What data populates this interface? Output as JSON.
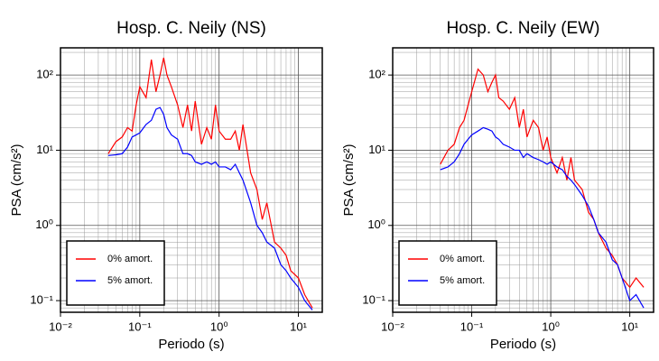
{
  "chart_data": [
    {
      "type": "line",
      "title": "Hosp. C. Neily (NS)",
      "xlabel": "Periodo (s)",
      "ylabel": "PSA (cm/s²)",
      "xscale": "log",
      "yscale": "log",
      "grid": true,
      "minor_grid": true,
      "legend": "lower left",
      "xlim": [
        0.01,
        20
      ],
      "ylim": [
        0.07,
        230
      ],
      "xticks": [
        {
          "value": 0.01,
          "label": "10⁻²"
        },
        {
          "value": 0.1,
          "label": "10⁻¹"
        },
        {
          "value": 1,
          "label": "10⁰"
        },
        {
          "value": 10,
          "label": "10¹"
        }
      ],
      "yticks": [
        {
          "value": 0.1,
          "label": "10⁻¹"
        },
        {
          "value": 1,
          "label": "10⁰"
        },
        {
          "value": 10,
          "label": "10¹"
        },
        {
          "value": 100,
          "label": "10²"
        }
      ],
      "x": [
        0.04,
        0.05,
        0.06,
        0.07,
        0.08,
        0.09,
        0.1,
        0.12,
        0.14,
        0.16,
        0.18,
        0.2,
        0.22,
        0.25,
        0.3,
        0.35,
        0.4,
        0.45,
        0.5,
        0.6,
        0.7,
        0.8,
        0.9,
        1.0,
        1.2,
        1.4,
        1.6,
        1.8,
        2.0,
        2.5,
        3,
        3.5,
        4,
        5,
        6,
        7,
        8,
        10,
        12,
        15
      ],
      "series": [
        {
          "name": "0% amort.",
          "color": "#ff0000",
          "values": [
            9,
            13,
            15,
            20,
            18,
            40,
            70,
            50,
            160,
            60,
            100,
            170,
            100,
            70,
            40,
            20,
            40,
            18,
            45,
            12,
            20,
            14,
            40,
            18,
            14,
            14,
            18,
            10,
            22,
            5,
            3,
            1.2,
            2,
            0.6,
            0.5,
            0.4,
            0.25,
            0.2,
            0.12,
            0.08
          ]
        },
        {
          "name": "5% amort.",
          "color": "#0000ff",
          "values": [
            8.5,
            8.7,
            9,
            11,
            15,
            16,
            17,
            22,
            25,
            35,
            37,
            30,
            20,
            16,
            14,
            9,
            9,
            8.5,
            7,
            6.5,
            7,
            6.5,
            7,
            6,
            6,
            5.5,
            6.5,
            5,
            4,
            2,
            1,
            0.8,
            0.6,
            0.5,
            0.3,
            0.25,
            0.2,
            0.15,
            0.1,
            0.075
          ]
        }
      ]
    },
    {
      "type": "line",
      "title": "Hosp. C. Neily (EW)",
      "xlabel": "Periodo (s)",
      "ylabel": "PSA (cm/s²)",
      "xscale": "log",
      "yscale": "log",
      "grid": true,
      "minor_grid": true,
      "legend": "lower left",
      "xlim": [
        0.01,
        20
      ],
      "ylim": [
        0.07,
        230
      ],
      "xticks": [
        {
          "value": 0.01,
          "label": "10⁻²"
        },
        {
          "value": 0.1,
          "label": "10⁻¹"
        },
        {
          "value": 1,
          "label": "10⁰"
        },
        {
          "value": 10,
          "label": "10¹"
        }
      ],
      "yticks": [
        {
          "value": 0.1,
          "label": "10⁻¹"
        },
        {
          "value": 1,
          "label": "10⁰"
        },
        {
          "value": 10,
          "label": "10¹"
        },
        {
          "value": 100,
          "label": "10²"
        }
      ],
      "x": [
        0.04,
        0.05,
        0.06,
        0.07,
        0.08,
        0.09,
        0.1,
        0.12,
        0.14,
        0.16,
        0.18,
        0.2,
        0.22,
        0.25,
        0.3,
        0.35,
        0.4,
        0.45,
        0.5,
        0.6,
        0.7,
        0.8,
        0.9,
        1.0,
        1.2,
        1.4,
        1.6,
        1.8,
        2.0,
        2.5,
        3,
        3.5,
        4,
        5,
        6,
        7,
        8,
        10,
        12,
        15
      ],
      "series": [
        {
          "name": "0% amort.",
          "color": "#ff0000",
          "values": [
            6.5,
            10,
            12,
            20,
            25,
            40,
            60,
            120,
            100,
            60,
            80,
            100,
            50,
            45,
            35,
            50,
            20,
            35,
            15,
            25,
            20,
            10,
            15,
            8,
            5,
            8,
            4,
            8,
            4,
            3,
            1.5,
            1.2,
            0.8,
            0.5,
            0.4,
            0.3,
            0.2,
            0.15,
            0.2,
            0.15
          ]
        },
        {
          "name": "5% amort.",
          "color": "#0000ff",
          "values": [
            5.5,
            6,
            7,
            9,
            12,
            14,
            16,
            18,
            20,
            19,
            18,
            15,
            14,
            12,
            11,
            10,
            10,
            8,
            9,
            8,
            7.5,
            7,
            6.5,
            7,
            6,
            5.5,
            4.5,
            4,
            3.5,
            2.5,
            1.8,
            1.2,
            0.8,
            0.6,
            0.35,
            0.3,
            0.2,
            0.1,
            0.12,
            0.08
          ]
        }
      ]
    }
  ]
}
